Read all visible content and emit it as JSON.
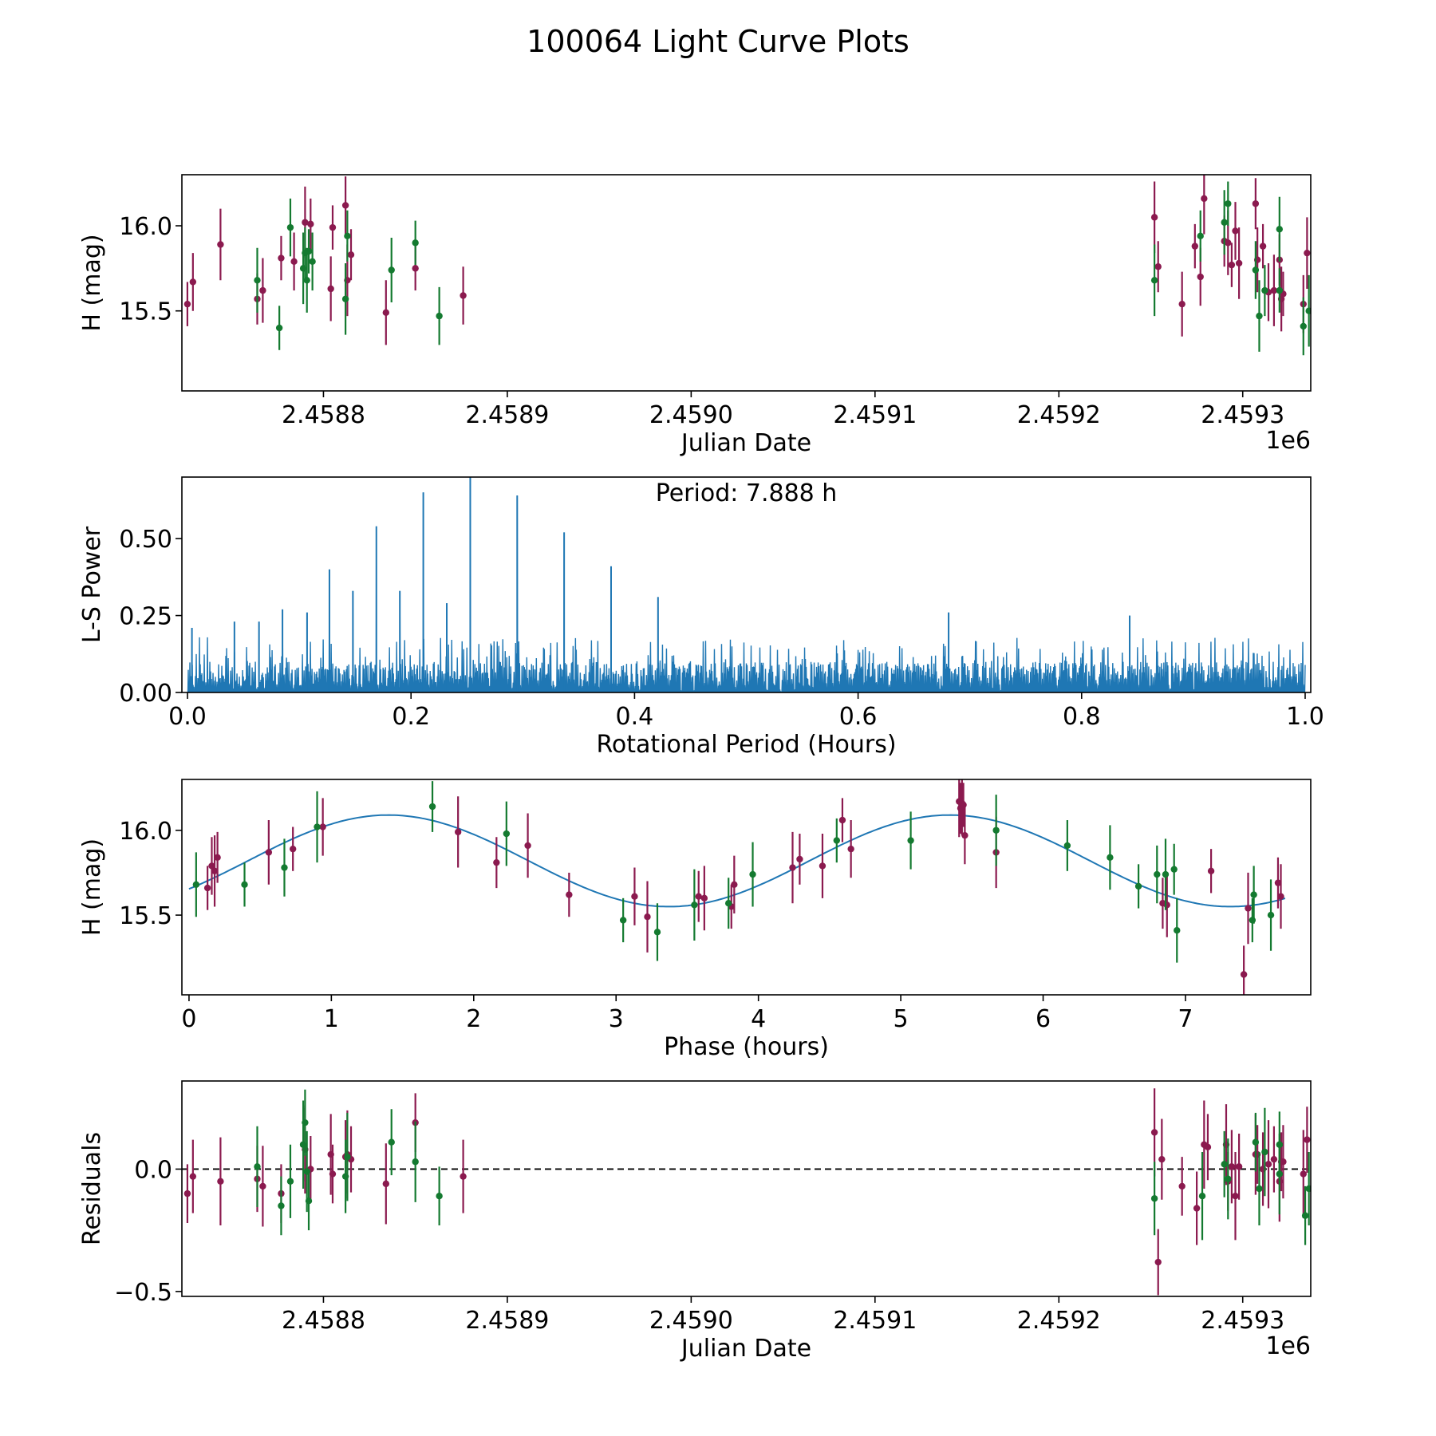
{
  "figure_title": "100064 Light Curve Plots",
  "colors": {
    "r_band": "#8b1a4f",
    "g_band": "#147a30",
    "power_line": "#1f77b4",
    "fit_curve": "#1f77b4",
    "axis": "#000000"
  },
  "chart_data": [
    {
      "id": "lightcurve",
      "type": "scatter",
      "xlabel": "Julian Date",
      "ylabel": "H (mag)",
      "x_offset_label": "1e6",
      "xlim": [
        2.458723,
        2.459337
      ],
      "ylim": [
        15.03,
        16.3
      ],
      "xticks": [
        2.4588,
        2.4589,
        2.459,
        2.4591,
        2.4592,
        2.4593
      ],
      "xtick_labels": [
        "2.4588",
        "2.4589",
        "2.4590",
        "2.4591",
        "2.4592",
        "2.4593"
      ],
      "yticks": [
        15.5,
        16.0
      ],
      "ytick_labels": [
        "15.5",
        "16.0"
      ],
      "series": [
        {
          "name": "r",
          "color": "#8b1a4f",
          "x": [
            2.458726,
            2.458729,
            2.458744,
            2.458764,
            2.458767,
            2.458777,
            2.458784,
            2.45879,
            2.458793,
            2.458804,
            2.458805,
            2.458812,
            2.458813,
            2.458815,
            2.458834,
            2.45885,
            2.458876,
            2.459252,
            2.459254,
            2.459267,
            2.459274,
            2.459277,
            2.459279,
            2.45929,
            2.459292,
            2.459294,
            2.459296,
            2.459298,
            2.459307,
            2.459308,
            2.459311,
            2.459314,
            2.459317,
            2.45932,
            2.459321,
            2.459322,
            2.459333,
            2.459335
          ],
          "y": [
            15.54,
            15.67,
            15.89,
            15.57,
            15.62,
            15.81,
            15.79,
            16.02,
            16.01,
            15.63,
            15.99,
            16.12,
            15.68,
            15.83,
            15.49,
            15.75,
            15.59,
            16.05,
            15.76,
            15.54,
            15.88,
            15.7,
            16.16,
            15.91,
            15.9,
            15.77,
            15.97,
            15.78,
            16.13,
            15.8,
            15.88,
            15.61,
            15.62,
            15.8,
            15.57,
            15.6,
            15.54,
            15.84
          ]
        },
        {
          "name": "g",
          "color": "#147a30",
          "x": [
            2.458764,
            2.458776,
            2.458782,
            2.458789,
            2.45879,
            2.458791,
            2.458792,
            2.458794,
            2.458812,
            2.458813,
            2.458837,
            2.45885,
            2.458863,
            2.459252,
            2.459277,
            2.45929,
            2.459292,
            2.459307,
            2.459309,
            2.459312,
            2.45932,
            2.45932,
            2.459333,
            2.459336
          ],
          "y": [
            15.68,
            15.4,
            15.99,
            15.75,
            15.84,
            15.68,
            15.85,
            15.79,
            15.57,
            15.94,
            15.74,
            15.9,
            15.47,
            15.68,
            15.94,
            16.02,
            16.13,
            15.74,
            15.47,
            15.62,
            15.98,
            15.62,
            15.41,
            15.5
          ]
        }
      ]
    },
    {
      "id": "periodogram",
      "type": "line",
      "xlabel": "Rotational Period (Hours)",
      "ylabel": "L-S Power",
      "annotation": "Period: 7.888 h",
      "xlim": [
        -0.005,
        1.005
      ],
      "ylim": [
        0,
        0.7
      ],
      "xticks": [
        0.0,
        0.2,
        0.4,
        0.6,
        0.8,
        1.0
      ],
      "xtick_labels": [
        "0.0",
        "0.2",
        "0.4",
        "0.6",
        "0.8",
        "1.0"
      ],
      "yticks": [
        0.0,
        0.25,
        0.5
      ],
      "ytick_labels": [
        "0.00",
        "0.25",
        "0.50"
      ],
      "noise_ceiling": 0.1,
      "peaks": {
        "x": [
          0.127,
          0.148,
          0.169,
          0.19,
          0.211,
          0.232,
          0.253,
          0.295,
          0.337,
          0.379,
          0.421,
          0.085,
          0.064,
          0.042,
          0.107,
          0.681,
          0.843,
          0.004
        ],
        "y": [
          0.4,
          0.33,
          0.54,
          0.33,
          0.65,
          0.29,
          0.7,
          0.64,
          0.52,
          0.41,
          0.31,
          0.27,
          0.23,
          0.23,
          0.26,
          0.26,
          0.25,
          0.21
        ]
      }
    },
    {
      "id": "phased",
      "type": "scatter",
      "xlabel": "Phase (hours)",
      "ylabel": "H (mag)",
      "xlim": [
        -0.05,
        7.88
      ],
      "ylim": [
        15.03,
        16.3
      ],
      "xticks": [
        0,
        1,
        2,
        3,
        4,
        5,
        6,
        7
      ],
      "xtick_labels": [
        "0",
        "1",
        "2",
        "3",
        "4",
        "5",
        "6",
        "7"
      ],
      "yticks": [
        15.5,
        16.0
      ],
      "ytick_labels": [
        "15.5",
        "16.0"
      ],
      "model": {
        "period_hours": 7.888,
        "mean": 15.82,
        "amplitude": 0.27,
        "peak_phases": [
          1.4,
          5.4
        ]
      },
      "series": [
        {
          "name": "r",
          "color": "#8b1a4f",
          "x": [
            0.13,
            0.16,
            0.18,
            0.2,
            0.56,
            0.73,
            0.94,
            1.89,
            2.16,
            2.38,
            2.67,
            3.13,
            3.22,
            3.58,
            3.62,
            3.81,
            3.83,
            4.24,
            4.29,
            4.45,
            4.59,
            4.65,
            5.41,
            5.42,
            5.43,
            5.44,
            5.45,
            5.67,
            6.84,
            6.87,
            7.18,
            7.41,
            7.44,
            7.65,
            7.67
          ],
          "y": [
            15.66,
            15.79,
            15.76,
            15.84,
            15.87,
            15.89,
            16.02,
            15.99,
            15.81,
            15.91,
            15.62,
            15.61,
            15.49,
            15.61,
            15.6,
            15.55,
            15.68,
            15.78,
            15.83,
            15.79,
            16.06,
            15.89,
            16.17,
            16.13,
            16.16,
            16.15,
            15.97,
            15.87,
            15.57,
            15.56,
            15.76,
            15.15,
            15.54,
            15.69,
            15.61
          ]
        },
        {
          "name": "g",
          "color": "#147a30",
          "x": [
            0.05,
            0.39,
            0.67,
            0.9,
            1.71,
            2.23,
            3.05,
            3.29,
            3.55,
            3.79,
            3.96,
            4.55,
            5.07,
            5.67,
            6.17,
            6.47,
            6.67,
            6.8,
            6.86,
            6.92,
            6.94,
            7.47,
            7.48,
            7.6
          ],
          "y": [
            15.68,
            15.68,
            15.78,
            16.02,
            16.14,
            15.98,
            15.47,
            15.4,
            15.56,
            15.57,
            15.74,
            15.94,
            15.94,
            16.0,
            15.91,
            15.84,
            15.67,
            15.74,
            15.74,
            15.77,
            15.41,
            15.47,
            15.62,
            15.5
          ]
        }
      ],
      "fit_line_color": "#1f77b4"
    },
    {
      "id": "residuals",
      "type": "scatter",
      "xlabel": "Julian Date",
      "ylabel": "Residuals",
      "x_offset_label": "1e6",
      "xlim": [
        2.458723,
        2.459337
      ],
      "ylim": [
        -0.52,
        0.36
      ],
      "xticks": [
        2.4588,
        2.4589,
        2.459,
        2.4591,
        2.4592,
        2.4593
      ],
      "xtick_labels": [
        "2.4588",
        "2.4589",
        "2.4590",
        "2.4591",
        "2.4592",
        "2.4593"
      ],
      "yticks": [
        -0.5,
        0.0
      ],
      "ytick_labels": [
        "−0.5",
        "0.0"
      ],
      "reference_line_y": 0.0,
      "series": [
        {
          "name": "r",
          "color": "#8b1a4f",
          "x": [
            2.458726,
            2.458729,
            2.458744,
            2.458764,
            2.458767,
            2.458777,
            2.458789,
            2.45879,
            2.458793,
            2.458804,
            2.458805,
            2.458812,
            2.458813,
            2.458815,
            2.458834,
            2.45885,
            2.458876,
            2.459252,
            2.459254,
            2.459256,
            2.459267,
            2.459275,
            2.459279,
            2.459281,
            2.459291,
            2.459292,
            2.459294,
            2.459296,
            2.459298,
            2.459307,
            2.459308,
            2.459311,
            2.459314,
            2.459317,
            2.45932,
            2.459321,
            2.459322,
            2.459333,
            2.459335
          ],
          "y": [
            -0.1,
            -0.03,
            -0.05,
            -0.04,
            -0.07,
            -0.1,
            0.1,
            0.08,
            0.0,
            0.06,
            -0.02,
            0.05,
            0.06,
            0.04,
            -0.06,
            0.19,
            -0.03,
            0.15,
            -0.38,
            0.04,
            -0.07,
            -0.16,
            0.1,
            0.09,
            0.1,
            -0.05,
            0.01,
            -0.11,
            0.01,
            0.06,
            0.06,
            0.0,
            0.02,
            0.04,
            -0.05,
            0.03,
            0.03,
            -0.02,
            0.12
          ]
        },
        {
          "name": "g",
          "color": "#147a30",
          "x": [
            2.458764,
            2.458777,
            2.458782,
            2.458789,
            2.45879,
            2.458791,
            2.458792,
            2.458812,
            2.458813,
            2.458837,
            2.45885,
            2.458863,
            2.459252,
            2.459278,
            2.45929,
            2.459292,
            2.459307,
            2.459309,
            2.459312,
            2.45932,
            2.45932,
            2.459334,
            2.459336
          ],
          "y": [
            0.01,
            -0.15,
            -0.05,
            0.1,
            0.19,
            -0.01,
            -0.13,
            -0.03,
            0.05,
            0.11,
            0.03,
            -0.11,
            -0.12,
            -0.11,
            0.02,
            -0.04,
            0.11,
            -0.08,
            0.07,
            0.1,
            -0.02,
            -0.19,
            -0.08
          ]
        }
      ]
    }
  ]
}
